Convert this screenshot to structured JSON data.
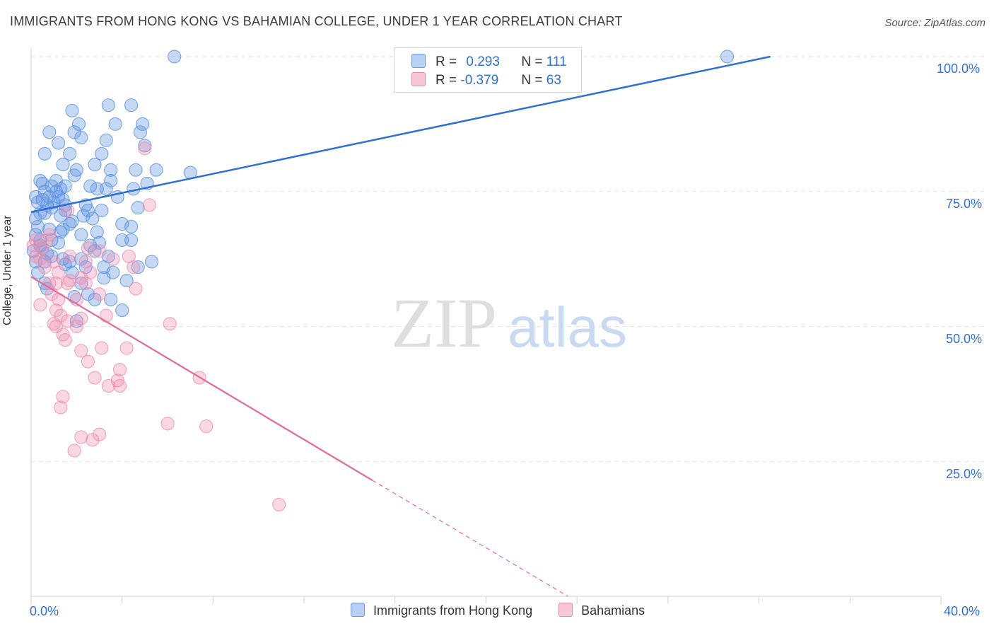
{
  "title": "IMMIGRANTS FROM HONG KONG VS BAHAMIAN COLLEGE, UNDER 1 YEAR CORRELATION CHART",
  "source": "Source: ZipAtlas.com",
  "watermark": {
    "zip": "ZIP",
    "atlas": "atlas"
  },
  "legend_top": {
    "rows": [
      {
        "r_label": "R = ",
        "r_value": "0.293",
        "n_label": "N = ",
        "n_value": "111"
      },
      {
        "r_label": "R = ",
        "r_value": "-0.379",
        "n_label": "N = ",
        "n_value": "63"
      }
    ]
  },
  "colors": {
    "blue": "#5b93e0",
    "blue_line": "#2f6fd6",
    "pink": "#ee8fb0",
    "pink_line": "#e26a94",
    "grid": "#e3e3e3"
  },
  "chart_data": {
    "type": "scatter",
    "title": "IMMIGRANTS FROM HONG KONG VS BAHAMIAN COLLEGE, UNDER 1 YEAR CORRELATION CHART",
    "xlabel": "",
    "ylabel": "College, Under 1 year",
    "xlim": [
      0,
      40
    ],
    "ylim": [
      0,
      100
    ],
    "x_tick_labels": [
      "0.0%",
      "40.0%"
    ],
    "y_tick_labels": [
      "25.0%",
      "50.0%",
      "75.0%",
      "100.0%"
    ],
    "y_ticks": [
      25,
      50,
      75,
      100
    ],
    "legend_position": "bottom-center",
    "series": [
      {
        "name": "Immigrants from Hong Kong",
        "r": 0.293,
        "n": 111,
        "trend": {
          "x0": 0,
          "y0": 71.2,
          "x1": 32.5,
          "y1": 100,
          "dashed_to": null
        },
        "points": [
          [
            6.3,
            100
          ],
          [
            30.6,
            100
          ],
          [
            1.8,
            90
          ],
          [
            3.4,
            91
          ],
          [
            4.4,
            91
          ],
          [
            2.1,
            87.5
          ],
          [
            3.7,
            87.5
          ],
          [
            4.9,
            87.5
          ],
          [
            0.8,
            86
          ],
          [
            1.9,
            86
          ],
          [
            4.8,
            86
          ],
          [
            2.2,
            85
          ],
          [
            3.3,
            84.5
          ],
          [
            1.2,
            84
          ],
          [
            5.0,
            83.5
          ],
          [
            0.6,
            82
          ],
          [
            1.7,
            82
          ],
          [
            3.1,
            82
          ],
          [
            1.4,
            80
          ],
          [
            2.8,
            80
          ],
          [
            2.0,
            79
          ],
          [
            3.5,
            79
          ],
          [
            4.6,
            79
          ],
          [
            5.5,
            79
          ],
          [
            7.0,
            78.5
          ],
          [
            1.9,
            78
          ],
          [
            0.4,
            77
          ],
          [
            1.1,
            77
          ],
          [
            3.5,
            77
          ],
          [
            0.5,
            76.5
          ],
          [
            1.5,
            76
          ],
          [
            2.6,
            76
          ],
          [
            5.1,
            76.5
          ],
          [
            0.9,
            76
          ],
          [
            1.3,
            75.5
          ],
          [
            2.9,
            75.5
          ],
          [
            0.6,
            75
          ],
          [
            1.1,
            75
          ],
          [
            4.5,
            75.5
          ],
          [
            0.2,
            74
          ],
          [
            0.8,
            74
          ],
          [
            1.2,
            74
          ],
          [
            0.5,
            73.5
          ],
          [
            1.4,
            73.5
          ],
          [
            3.8,
            74
          ],
          [
            0.3,
            73
          ],
          [
            0.7,
            72.5
          ],
          [
            1.5,
            72.5
          ],
          [
            2.4,
            72.5
          ],
          [
            4.7,
            72
          ],
          [
            0.9,
            72
          ],
          [
            1.5,
            71.5
          ],
          [
            2.5,
            71.5
          ],
          [
            0.4,
            71
          ],
          [
            0.6,
            71
          ],
          [
            3.1,
            71.5
          ],
          [
            0.2,
            70
          ],
          [
            1.3,
            70.5
          ],
          [
            2.7,
            70
          ],
          [
            1.7,
            69
          ],
          [
            4.0,
            69
          ],
          [
            0.8,
            68
          ],
          [
            1.4,
            68
          ],
          [
            4.4,
            68.5
          ],
          [
            0.2,
            67
          ],
          [
            0.4,
            66
          ],
          [
            1.3,
            67.5
          ],
          [
            2.2,
            67
          ],
          [
            3.0,
            65.5
          ],
          [
            0.4,
            65
          ],
          [
            2.6,
            65
          ],
          [
            4.0,
            66
          ],
          [
            0.1,
            64
          ],
          [
            2.8,
            64
          ],
          [
            0.9,
            63
          ],
          [
            1.7,
            62
          ],
          [
            2.2,
            62.5
          ],
          [
            0.6,
            62
          ],
          [
            5.3,
            62
          ],
          [
            1.5,
            61.5
          ],
          [
            3.2,
            61
          ],
          [
            4.7,
            61
          ],
          [
            1.8,
            60
          ],
          [
            3.6,
            60
          ],
          [
            3.2,
            59
          ],
          [
            2.2,
            58
          ],
          [
            2.5,
            56
          ],
          [
            3.5,
            55
          ],
          [
            1.9,
            55.5
          ],
          [
            4.0,
            53
          ],
          [
            0.7,
            57
          ],
          [
            2.0,
            51
          ],
          [
            0.3,
            60
          ],
          [
            0.6,
            58
          ],
          [
            2.8,
            55
          ],
          [
            1.4,
            62.5
          ],
          [
            0.9,
            66
          ],
          [
            0.3,
            68.5
          ],
          [
            2.4,
            61
          ],
          [
            4.2,
            58.5
          ],
          [
            0.5,
            64.5
          ],
          [
            1.0,
            73
          ],
          [
            3.3,
            75.5
          ],
          [
            1.8,
            69.5
          ],
          [
            0.7,
            63.5
          ],
          [
            2.3,
            70.5
          ],
          [
            1.2,
            65.5
          ],
          [
            4.4,
            66
          ],
          [
            0.2,
            62
          ],
          [
            3.4,
            63
          ],
          [
            2.9,
            67.5
          ]
        ]
      },
      {
        "name": "Bahamians",
        "r": -0.379,
        "n": 63,
        "trend": {
          "x0": 0,
          "y0": 59.2,
          "x1": 15,
          "y1": 21.5,
          "dashed_to": {
            "x": 40,
            "y": -41
          }
        },
        "points": [
          [
            5.0,
            83
          ],
          [
            5.2,
            72.5
          ],
          [
            1.6,
            71.5
          ],
          [
            0.8,
            67
          ],
          [
            0.2,
            66
          ],
          [
            0.7,
            66
          ],
          [
            0.1,
            65
          ],
          [
            0.5,
            64.5
          ],
          [
            2.5,
            64.5
          ],
          [
            0.2,
            63
          ],
          [
            0.4,
            62.5
          ],
          [
            1.0,
            62
          ],
          [
            3.6,
            62.5
          ],
          [
            4.3,
            63
          ],
          [
            2.4,
            62
          ],
          [
            0.6,
            61
          ],
          [
            4.5,
            61
          ],
          [
            2.6,
            60
          ],
          [
            2.2,
            59
          ],
          [
            1.7,
            58.5
          ],
          [
            0.8,
            58
          ],
          [
            1.1,
            58
          ],
          [
            1.6,
            58
          ],
          [
            3.0,
            56
          ],
          [
            1.2,
            55
          ],
          [
            2.0,
            55
          ],
          [
            1.1,
            53
          ],
          [
            1.3,
            52
          ],
          [
            2.2,
            51.5
          ],
          [
            1.6,
            51
          ],
          [
            1.0,
            50.5
          ],
          [
            6.1,
            50.5
          ],
          [
            1.1,
            50
          ],
          [
            2.0,
            50
          ],
          [
            1.4,
            48.5
          ],
          [
            1.5,
            47.5
          ],
          [
            2.2,
            45.5
          ],
          [
            3.1,
            46
          ],
          [
            4.2,
            46
          ],
          [
            2.5,
            43.5
          ],
          [
            3.9,
            42
          ],
          [
            2.8,
            40.5
          ],
          [
            3.8,
            40
          ],
          [
            7.4,
            40.5
          ],
          [
            3.4,
            39
          ],
          [
            3.9,
            39
          ],
          [
            1.4,
            37
          ],
          [
            1.3,
            35
          ],
          [
            6.0,
            32
          ],
          [
            7.7,
            31.5
          ],
          [
            3.0,
            30
          ],
          [
            2.2,
            29.5
          ],
          [
            2.7,
            29
          ],
          [
            1.9,
            27
          ],
          [
            10.9,
            17
          ],
          [
            3.3,
            52
          ],
          [
            0.4,
            54
          ],
          [
            2.4,
            58
          ],
          [
            1.2,
            60
          ],
          [
            0.9,
            56
          ],
          [
            3.0,
            64
          ],
          [
            4.6,
            57
          ],
          [
            1.7,
            63
          ]
        ]
      }
    ]
  }
}
